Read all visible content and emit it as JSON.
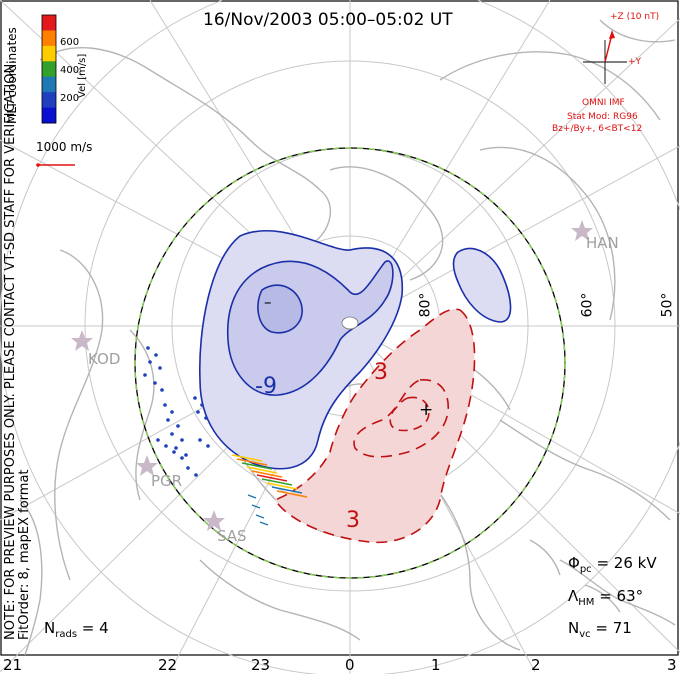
{
  "title": "16/Nov/2003 05:00–05:02 UT",
  "note": [
    "NOTE: FOR PREVIEW PURPOSES ONLY. PLEASE CONTACT VT-SD STAFF FOR VERIFICATION.",
    "FitOrder: 8, mapEX format"
  ],
  "coordinates": "MLT coordinates",
  "colorbar": {
    "label": "Vel [m/s]",
    "ticks": [
      "600",
      "400",
      "200"
    ],
    "colors": [
      "#e31a1c",
      "#ff7f00",
      "#ffcc00",
      "#33a02c",
      "#1f78b4",
      "#1f3fbf",
      "#0a10d0"
    ]
  },
  "reference_vector": "1000 m/s",
  "imf": {
    "z_label": "+Z (10 nT)",
    "y_label": "+Y",
    "source": "OMNI IMF",
    "stat_mod": "Stat Mod: RG96",
    "condition": "Bz+/By+, 6<BT<12"
  },
  "stations": [
    "HAN",
    "KOD",
    "PGR",
    "SAS"
  ],
  "latitudes": [
    "80°",
    "60°",
    "50°"
  ],
  "contour_labels": {
    "negative": "-9",
    "positive": "3",
    "positive_2": "3",
    "minimum": "–",
    "maximum": "+"
  },
  "stats": {
    "phi_pc": "Φpc = 26 kV",
    "phi_pc_sym": "Φ",
    "phi_pc_sub": "pc",
    "phi_pc_val": " = 26 kV",
    "lambda_sym": "Λ",
    "lambda_sub": "HM",
    "lambda_val": " = 63°",
    "nvc_sym": "N",
    "nvc_sub": "vc",
    "nvc_val": " = 71",
    "nrads_sym": "N",
    "nrads_sub": "rads",
    "nrads_val": " = 4"
  },
  "mlt_hours": [
    "21",
    "22",
    "23",
    "0",
    "1",
    "2",
    "3"
  ],
  "colors": {
    "negative_cell": "#1a2fa8",
    "positive_cell": "#c01010",
    "boundary": "#7fd04a",
    "grid": "#c8c8c8",
    "coast": "#b4b4b4"
  }
}
